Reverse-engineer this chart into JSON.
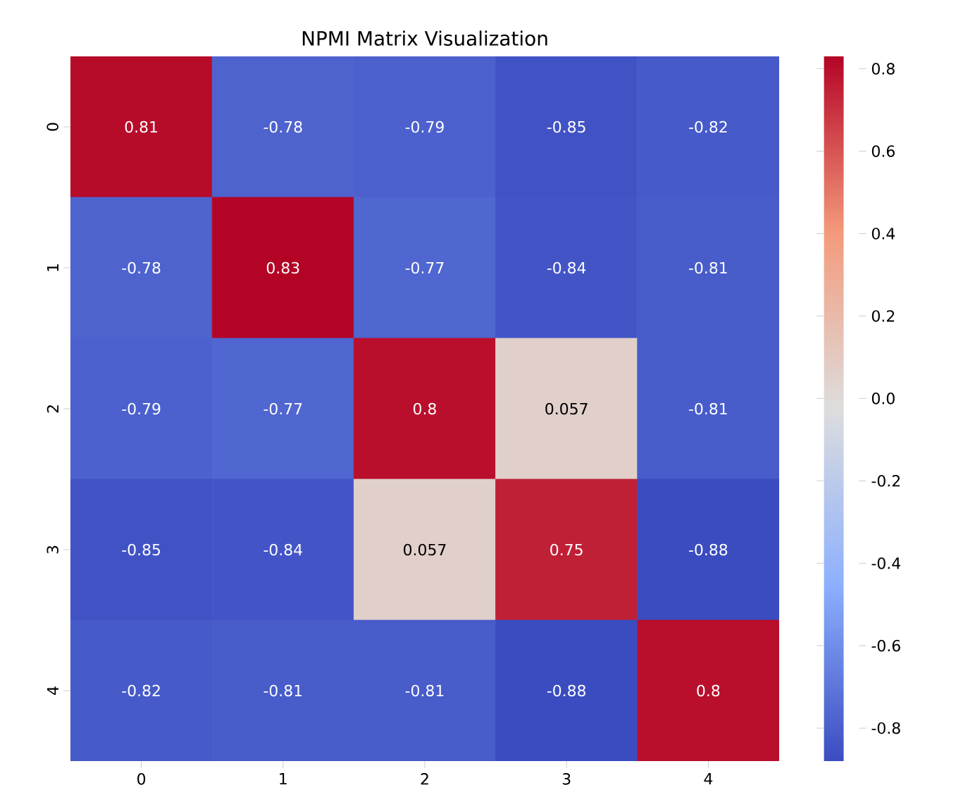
{
  "chart_data": {
    "type": "heatmap",
    "title": "NPMI Matrix Visualization",
    "categories": [
      "0",
      "1",
      "2",
      "3",
      "4"
    ],
    "y_categories": [
      "0",
      "1",
      "2",
      "3",
      "4"
    ],
    "cells": [
      [
        0.81,
        -0.78,
        -0.79,
        -0.85,
        -0.82
      ],
      [
        -0.78,
        0.83,
        -0.77,
        -0.84,
        -0.81
      ],
      [
        -0.79,
        -0.77,
        0.8,
        0.057,
        -0.81
      ],
      [
        -0.85,
        -0.84,
        0.057,
        0.75,
        -0.88
      ],
      [
        -0.82,
        -0.81,
        -0.81,
        -0.88,
        0.8
      ]
    ],
    "data_labels": true,
    "clim": [
      -0.88,
      0.83
    ],
    "cticks": [
      -0.8,
      -0.6,
      -0.4,
      -0.2,
      {
        "value": 0,
        "label": "0.0"
      },
      0.2,
      0.4,
      0.6,
      0.8
    ]
  }
}
